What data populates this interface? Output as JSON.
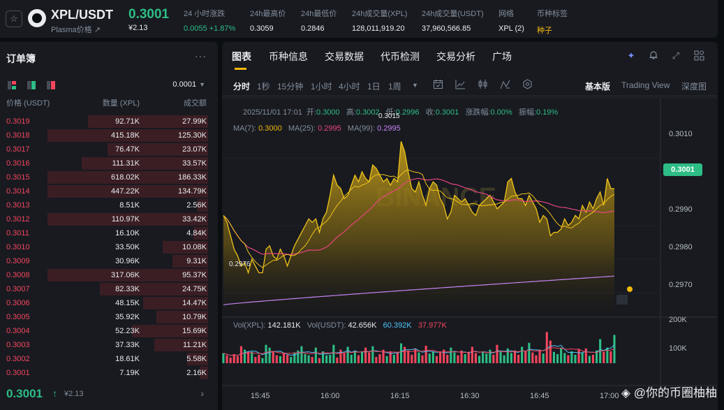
{
  "ticker": {
    "pair": "XPL/USDT",
    "sub": "Plasma价格 ↗",
    "last_price": "0.3001",
    "last_price_cny": "¥2.13",
    "stats": [
      {
        "label": "24 小时涨跌",
        "value": "0.0055 +1.87%",
        "style": "green"
      },
      {
        "label": "24h最高价",
        "value": "0.3059",
        "style": ""
      },
      {
        "label": "24h最低价",
        "value": "0.2846",
        "style": ""
      },
      {
        "label": "24h成交量(XPL)",
        "value": "128,011,919.20",
        "style": ""
      },
      {
        "label": "24h成交量(USDT)",
        "value": "37,960,566.85",
        "style": ""
      },
      {
        "label": "网络",
        "value": "XPL (2)",
        "style": ""
      },
      {
        "label": "币种标签",
        "value": "种子",
        "style": "gold"
      }
    ]
  },
  "orderbook": {
    "title": "订单簿",
    "precision": "0.0001",
    "headers": {
      "price": "价格 (USDT)",
      "qty": "数量 (XPL)",
      "total": "成交额"
    },
    "rows": [
      {
        "price": "0.3019",
        "qty": "92.71K",
        "total": "27.99K",
        "depth": 0.74
      },
      {
        "price": "0.3018",
        "qty": "415.18K",
        "total": "125.30K",
        "depth": 0.99
      },
      {
        "price": "0.3017",
        "qty": "76.47K",
        "total": "23.07K",
        "depth": 0.62
      },
      {
        "price": "0.3016",
        "qty": "111.31K",
        "total": "33.57K",
        "depth": 0.78
      },
      {
        "price": "0.3015",
        "qty": "618.02K",
        "total": "186.33K",
        "depth": 0.99
      },
      {
        "price": "0.3014",
        "qty": "447.22K",
        "total": "134.79K",
        "depth": 0.99
      },
      {
        "price": "0.3013",
        "qty": "8.51K",
        "total": "2.56K",
        "depth": 0.07
      },
      {
        "price": "0.3012",
        "qty": "110.97K",
        "total": "33.42K",
        "depth": 0.99
      },
      {
        "price": "0.3011",
        "qty": "16.10K",
        "total": "4.84K",
        "depth": 0.09
      },
      {
        "price": "0.3010",
        "qty": "33.50K",
        "total": "10.08K",
        "depth": 0.28
      },
      {
        "price": "0.3009",
        "qty": "30.96K",
        "total": "9.31K",
        "depth": 0.22
      },
      {
        "price": "0.3008",
        "qty": "317.06K",
        "total": "95.37K",
        "depth": 0.99
      },
      {
        "price": "0.3007",
        "qty": "82.33K",
        "total": "24.75K",
        "depth": 0.67
      },
      {
        "price": "0.3006",
        "qty": "48.15K",
        "total": "14.47K",
        "depth": 0.4
      },
      {
        "price": "0.3005",
        "qty": "35.92K",
        "total": "10.79K",
        "depth": 0.32
      },
      {
        "price": "0.3004",
        "qty": "52.23K",
        "total": "15.69K",
        "depth": 0.47
      },
      {
        "price": "0.3003",
        "qty": "37.33K",
        "total": "11.21K",
        "depth": 0.33
      },
      {
        "price": "0.3002",
        "qty": "18.61K",
        "total": "5.58K",
        "depth": 0.13
      },
      {
        "price": "0.3001",
        "qty": "7.19K",
        "total": "2.16K",
        "depth": 0.05
      }
    ],
    "last_price": "0.3001",
    "last_arrow": "↑",
    "last_cny": "¥2.13"
  },
  "chart": {
    "tabs": [
      "图表",
      "币种信息",
      "交易数据",
      "代币检测",
      "交易分析",
      "广场"
    ],
    "timeframes": [
      "分时",
      "1秒",
      "15分钟",
      "1小时",
      "4小时",
      "1日",
      "1周"
    ],
    "views": [
      "基本版",
      "Trading View",
      "深度图"
    ],
    "ohlc": {
      "date": "2025/11/01 17:01",
      "open_k": "开:",
      "open": "0.3000",
      "high_k": "高:",
      "high": "0.3002",
      "low_k": "低:",
      "low": "0.2996",
      "close_k": "收:",
      "close": "0.3001",
      "chg_k": "涨跌幅:",
      "chg": "0.00%",
      "amp_k": "振幅:",
      "amp": "0.19%"
    },
    "ma": {
      "ma7_k": "MA(7):",
      "ma7": "0.3000",
      "ma25_k": "MA(25):",
      "ma25": "0.2995",
      "ma99_k": "MA(99):",
      "ma99": "0.2995"
    },
    "vol": {
      "vol_k": "Vol(XPL):",
      "vol": "142.181K",
      "volu_k": "Vol(USDT):",
      "volu": "42.656K",
      "v1": "60.392K",
      "v2": "37.977K"
    },
    "y_ticks": [
      "0.3010",
      "0.2990",
      "0.2980",
      "0.2970"
    ],
    "vol_ticks": [
      "200K",
      "100K"
    ],
    "x_ticks": [
      "15:45",
      "16:00",
      "16:15",
      "16:30",
      "16:45",
      "17:00"
    ],
    "current_price": "0.3001",
    "max_label": "0.3015",
    "min_label": "0.2976",
    "brand": "BINANCE",
    "watermark": "@你的币圈柚柚",
    "colors": {
      "up": "#2ebd85",
      "down": "#f6465d",
      "accent": "#f0b90b",
      "ma25": "#e6447e",
      "ma99": "#c685f5"
    }
  },
  "chart_data": {
    "type": "area",
    "title": "XPL/USDT",
    "ylim": [
      0.2962,
      0.3018
    ],
    "x_range": [
      "15:41",
      "17:01"
    ],
    "close": [
      0.2993,
      0.2991,
      0.2987,
      0.2983,
      0.2981,
      0.2978,
      0.2979,
      0.2976,
      0.298,
      0.2978,
      0.2976,
      0.2976,
      0.2983,
      0.2984,
      0.2981,
      0.298,
      0.2983,
      0.2981,
      0.2978,
      0.2981,
      0.2984,
      0.2986,
      0.2988,
      0.299,
      0.2992,
      0.2991,
      0.2992,
      0.2988,
      0.2992,
      0.2994,
      0.2999,
      0.3005,
      0.3002,
      0.3001,
      0.2998,
      0.2999,
      0.3002,
      0.3005,
      0.3003,
      0.3006,
      0.3004,
      0.3003,
      0.3008,
      0.3007,
      0.3005,
      0.3003,
      0.3004,
      0.3002,
      0.3004,
      0.3003,
      0.3015,
      0.3012,
      0.3006,
      0.3001,
      0.3,
      0.3003,
      0.2999,
      0.2996,
      0.3001,
      0.3003,
      0.3002,
      0.2998,
      0.2996,
      0.2992,
      0.2994,
      0.2999,
      0.2998,
      0.2997,
      0.2998,
      0.2996,
      0.2994,
      0.2993,
      0.2996,
      0.2997,
      0.2998,
      0.2999,
      0.2997,
      0.2995,
      0.2996,
      0.2997,
      0.3003,
      0.3004,
      0.3,
      0.2998,
      0.2998,
      0.2996,
      0.2999,
      0.2997,
      0.2995,
      0.2991,
      0.2993,
      0.2992,
      0.2987,
      0.2988,
      0.2988,
      0.2989,
      0.2992,
      0.299,
      0.2991,
      0.2993,
      0.2992,
      0.2996,
      0.2994,
      0.2997,
      0.2995,
      0.2998,
      0.3,
      0.2996,
      0.3004,
      0.3001,
      0.3001
    ],
    "volume": [
      35,
      28,
      20,
      32,
      25,
      60,
      48,
      42,
      40,
      22,
      30,
      18,
      65,
      55,
      40,
      28,
      25,
      35,
      30,
      22,
      38,
      45,
      60,
      32,
      28,
      22,
      55,
      18,
      42,
      28,
      30,
      65,
      20,
      48,
      35,
      58,
      30,
      45,
      28,
      42,
      55,
      38,
      60,
      22,
      32,
      48,
      25,
      42,
      30,
      36,
      70,
      58,
      45,
      30,
      52,
      38,
      28,
      62,
      34,
      42,
      25,
      40,
      48,
      30,
      55,
      38,
      28,
      45,
      32,
      40,
      58,
      36,
      26,
      42,
      34,
      48,
      30,
      65,
      40,
      28,
      52,
      36,
      45,
      30,
      58,
      42,
      72,
      38,
      28,
      48,
      34,
      110,
      80,
      40,
      32,
      55,
      36,
      28,
      42,
      30,
      48,
      38,
      52,
      26,
      30,
      45,
      85,
      40,
      55,
      42,
      100
    ],
    "volume_unit": "K XPL",
    "vol_ylim": [
      0,
      200
    ]
  }
}
